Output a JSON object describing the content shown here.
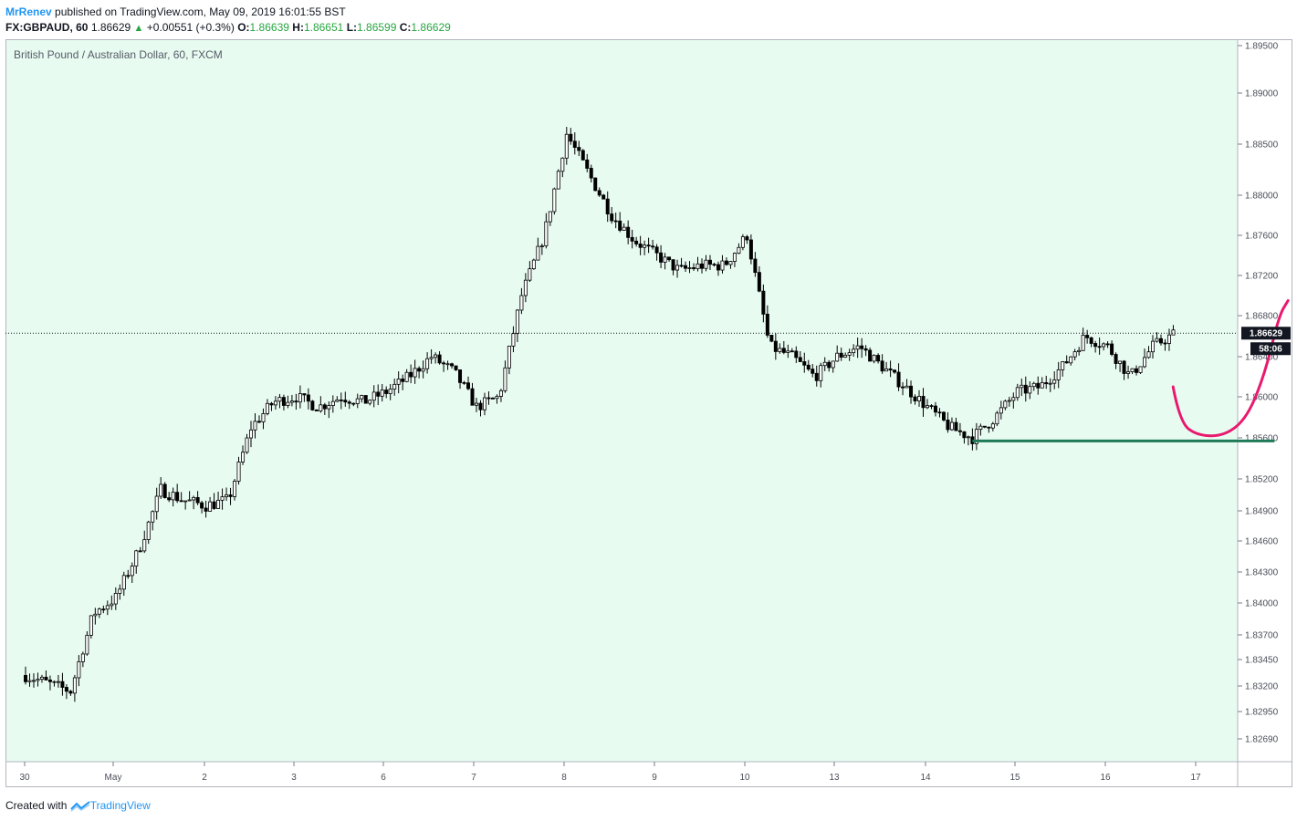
{
  "header": {
    "author": "MrRenev",
    "published_text": "published on TradingView.com, May 09, 2019 16:01:55 BST"
  },
  "ohlc_bar": {
    "symbol": "FX:GBPAUD, 60",
    "last": "1.86629",
    "change": "+0.00551 (+0.3%)",
    "o_label": "O:",
    "o": "1.86639",
    "h_label": "H:",
    "h": "1.86651",
    "l_label": "L:",
    "l": "1.86599",
    "c_label": "C:",
    "c": "1.86629"
  },
  "footer": {
    "created_with": "Created with",
    "brand": "TradingView"
  },
  "colors": {
    "background": "#e8fbf1",
    "candle": "#000000",
    "curve": "#e8196e",
    "support": "#1f7a58",
    "author": "#2196f3"
  },
  "chart_data": {
    "type": "candlestick",
    "title": "British Pound / Australian Dollar, 60, FXCM",
    "y_ticks": [
      "1.89500",
      "1.89000",
      "1.88500",
      "1.88000",
      "1.87600",
      "1.87200",
      "1.86800",
      "1.86400",
      "1.86000",
      "1.85600",
      "1.85200",
      "1.84900",
      "1.84600",
      "1.84300",
      "1.84000",
      "1.83700",
      "1.83450",
      "1.83200",
      "1.82950",
      "1.82690"
    ],
    "x_ticks": [
      "30",
      "May",
      "2",
      "3",
      "6",
      "7",
      "8",
      "9",
      "10",
      "13",
      "14",
      "15",
      "16",
      "17"
    ],
    "price_label": "1.86629",
    "countdown_label": "58:06",
    "last_price": 1.86629,
    "grid": false,
    "close_path": [
      [
        0,
        1.833
      ],
      [
        1,
        1.8315
      ],
      [
        1.5,
        1.839
      ],
      [
        2,
        1.8405
      ],
      [
        2.5,
        1.845
      ],
      [
        3,
        1.851
      ],
      [
        3.5,
        1.85
      ],
      [
        4,
        1.8495
      ],
      [
        4.5,
        1.85
      ],
      [
        5,
        1.857
      ],
      [
        5.5,
        1.8595
      ],
      [
        6,
        1.86
      ],
      [
        6.5,
        1.859
      ],
      [
        7,
        1.86
      ],
      [
        7.5,
        1.8595
      ],
      [
        8,
        1.8605
      ],
      [
        8.5,
        1.862
      ],
      [
        9,
        1.864
      ],
      [
        9.5,
        1.8625
      ],
      [
        10,
        1.859
      ],
      [
        10.5,
        1.86
      ],
      [
        11,
        1.87
      ],
      [
        11.5,
        1.876
      ],
      [
        12,
        1.886
      ],
      [
        12.5,
        1.882
      ],
      [
        13,
        1.878
      ],
      [
        13.5,
        1.8755
      ],
      [
        14,
        1.874
      ],
      [
        14.5,
        1.8725
      ],
      [
        15,
        1.873
      ],
      [
        15.5,
        1.873
      ],
      [
        16,
        1.876
      ],
      [
        16.5,
        1.865
      ],
      [
        17,
        1.864
      ],
      [
        17.5,
        1.862
      ],
      [
        18,
        1.864
      ],
      [
        18.5,
        1.865
      ],
      [
        19,
        1.863
      ],
      [
        19.5,
        1.861
      ],
      [
        20,
        1.859
      ],
      [
        20.5,
        1.857
      ],
      [
        21,
        1.856
      ],
      [
        21.5,
        1.858
      ],
      [
        22,
        1.8605
      ],
      [
        22.5,
        1.861
      ],
      [
        23,
        1.863
      ],
      [
        23.5,
        1.866
      ],
      [
        24,
        1.865
      ],
      [
        24.5,
        1.862
      ],
      [
        25,
        1.865
      ],
      [
        25.5,
        1.8663
      ]
    ],
    "support_line": {
      "x_start": 21.0,
      "x_end": 27.7,
      "y": 1.8557
    },
    "projection_curve": [
      [
        25.45,
        1.861
      ],
      [
        25.6,
        1.8575
      ],
      [
        26.0,
        1.8562
      ],
      [
        26.6,
        1.8562
      ],
      [
        27.1,
        1.858
      ],
      [
        27.5,
        1.8625
      ],
      [
        27.8,
        1.868
      ],
      [
        28.0,
        1.8695
      ]
    ]
  }
}
